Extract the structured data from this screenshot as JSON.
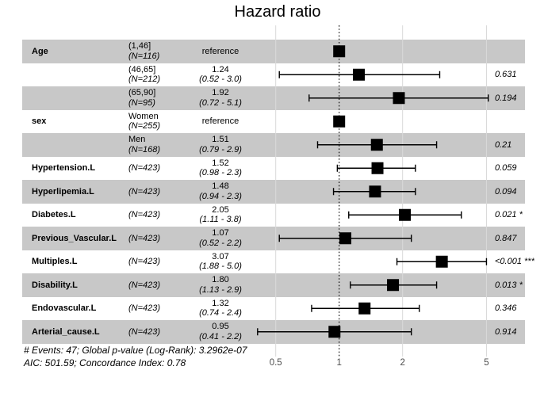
{
  "title": "Hazard ratio",
  "footer": {
    "line1": "# Events: 47; Global p-value (Log-Rank): 3.2962e-07",
    "line2": "AIC: 501.59; Concordance Index: 0.78"
  },
  "colors": {
    "band": "#c8c8c8",
    "grid": "#d9d9d9",
    "reference_line": "#000000",
    "marker": "#000000",
    "whisker": "#000000",
    "axis_text": "#4d4d4d"
  },
  "chart_data": {
    "type": "forest",
    "title": "Hazard ratio",
    "x_scale": "log10",
    "x_ticks": [
      0.5,
      1,
      2,
      5
    ],
    "reference_line": 1,
    "xlim": [
      0.38,
      6.8
    ],
    "legend_position": "none",
    "grid": "vertical",
    "rows": [
      {
        "variable": "Age",
        "level": "(1,46]",
        "n": "(N=116)",
        "estimate": "reference",
        "ci": "",
        "hr": 1.0,
        "low": null,
        "high": null,
        "p": ""
      },
      {
        "variable": "",
        "level": "(46,65]",
        "n": "(N=212)",
        "estimate": "1.24",
        "ci": "(0.52 - 3.0)",
        "hr": 1.24,
        "low": 0.52,
        "high": 3.0,
        "p": "0.631"
      },
      {
        "variable": "",
        "level": "(65,90]",
        "n": "(N=95)",
        "estimate": "1.92",
        "ci": "(0.72 - 5.1)",
        "hr": 1.92,
        "low": 0.72,
        "high": 5.1,
        "p": "0.194"
      },
      {
        "variable": "sex",
        "level": "Women",
        "n": "(N=255)",
        "estimate": "reference",
        "ci": "",
        "hr": 1.0,
        "low": null,
        "high": null,
        "p": ""
      },
      {
        "variable": "",
        "level": "Men",
        "n": "(N=168)",
        "estimate": "1.51",
        "ci": "(0.79 - 2.9)",
        "hr": 1.51,
        "low": 0.79,
        "high": 2.9,
        "p": "0.21"
      },
      {
        "variable": "Hypertension.L",
        "level": "",
        "n": "(N=423)",
        "estimate": "1.52",
        "ci": "(0.98 - 2.3)",
        "hr": 1.52,
        "low": 0.98,
        "high": 2.3,
        "p": "0.059"
      },
      {
        "variable": "Hyperlipemia.L",
        "level": "",
        "n": "(N=423)",
        "estimate": "1.48",
        "ci": "(0.94 - 2.3)",
        "hr": 1.48,
        "low": 0.94,
        "high": 2.3,
        "p": "0.094"
      },
      {
        "variable": "Diabetes.L",
        "level": "",
        "n": "(N=423)",
        "estimate": "2.05",
        "ci": "(1.11 - 3.8)",
        "hr": 2.05,
        "low": 1.11,
        "high": 3.8,
        "p": "0.021 *"
      },
      {
        "variable": "Previous_Vascular.L",
        "level": "",
        "n": "(N=423)",
        "estimate": "1.07",
        "ci": "(0.52 - 2.2)",
        "hr": 1.07,
        "low": 0.52,
        "high": 2.2,
        "p": "0.847"
      },
      {
        "variable": "Multiples.L",
        "level": "",
        "n": "(N=423)",
        "estimate": "3.07",
        "ci": "(1.88 - 5.0)",
        "hr": 3.07,
        "low": 1.88,
        "high": 5.0,
        "p": "<0.001 ***"
      },
      {
        "variable": "Disability.L",
        "level": "",
        "n": "(N=423)",
        "estimate": "1.80",
        "ci": "(1.13 - 2.9)",
        "hr": 1.8,
        "low": 1.13,
        "high": 2.9,
        "p": "0.013 *"
      },
      {
        "variable": "Endovascular.L",
        "level": "",
        "n": "(N=423)",
        "estimate": "1.32",
        "ci": "(0.74 - 2.4)",
        "hr": 1.32,
        "low": 0.74,
        "high": 2.4,
        "p": "0.346"
      },
      {
        "variable": "Arterial_cause.L",
        "level": "",
        "n": "(N=423)",
        "estimate": "0.95",
        "ci": "(0.41 - 2.2)",
        "hr": 0.95,
        "low": 0.41,
        "high": 2.2,
        "p": "0.914"
      }
    ]
  }
}
